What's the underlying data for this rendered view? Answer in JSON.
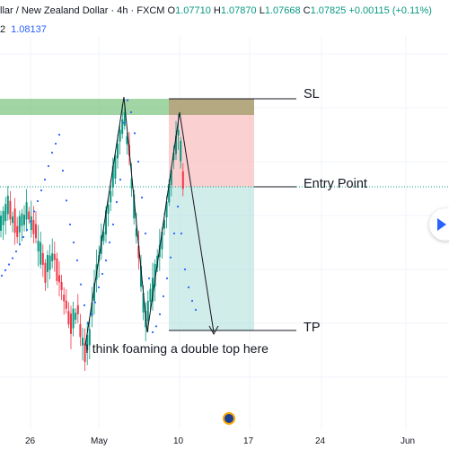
{
  "header": {
    "symbol": "llar / New Zealand Dollar",
    "sep1": "·",
    "interval": "4h",
    "sep2": "·",
    "exchange": "FXCM",
    "o_label": "O",
    "o_value": "1.07710",
    "h_label": "H",
    "h_value": "1.07870",
    "l_label": "L",
    "l_value": "1.07668",
    "c_label": "C",
    "c_value": "1.07825",
    "change": "+0.00115 (+0.11%)",
    "row2_prefix": "2",
    "row2_value": "1.08137"
  },
  "colors": {
    "up": "#089981",
    "down": "#f23645",
    "sar": "#2962ff",
    "zone_green": "#81c784",
    "stop_zone": "#f8a9a9",
    "target_zone": "#a9dfd8",
    "sl_band": "#a89a6b"
  },
  "chart_data": {
    "type": "candlestick",
    "x_tick_labels": [
      "26",
      "May",
      "10",
      "17",
      "24",
      "Jun"
    ],
    "series": [
      {
        "name": "price",
        "type": "candlestick"
      },
      {
        "name": "parabolic-sar",
        "type": "scatter"
      }
    ],
    "price_path": [
      [
        0,
        250
      ],
      [
        10,
        230
      ],
      [
        20,
        255
      ],
      [
        30,
        235
      ],
      [
        40,
        260
      ],
      [
        50,
        300
      ],
      [
        60,
        280
      ],
      [
        70,
        330
      ],
      [
        78,
        360
      ],
      [
        86,
        345
      ],
      [
        94,
        390
      ],
      [
        100,
        370
      ],
      [
        108,
        300
      ],
      [
        116,
        260
      ],
      [
        124,
        210
      ],
      [
        132,
        165
      ],
      [
        138,
        130
      ],
      [
        144,
        170
      ],
      [
        150,
        240
      ],
      [
        156,
        300
      ],
      [
        162,
        360
      ],
      [
        168,
        330
      ],
      [
        174,
        300
      ],
      [
        180,
        270
      ],
      [
        186,
        230
      ],
      [
        192,
        190
      ],
      [
        198,
        140
      ],
      [
        202,
        170
      ],
      [
        206,
        235
      ]
    ],
    "sar_path": [
      [
        0,
        310
      ],
      [
        8,
        298
      ],
      [
        16,
        284
      ],
      [
        24,
        268
      ],
      [
        32,
        252
      ],
      [
        40,
        230
      ],
      [
        50,
        200
      ],
      [
        58,
        170
      ],
      [
        66,
        150
      ],
      [
        72,
        210
      ],
      [
        78,
        250
      ],
      [
        86,
        290
      ],
      [
        92,
        330
      ],
      [
        98,
        360
      ],
      [
        104,
        345
      ],
      [
        110,
        320
      ],
      [
        118,
        290
      ],
      [
        126,
        250
      ],
      [
        134,
        200
      ],
      [
        140,
        105
      ],
      [
        146,
        125
      ],
      [
        152,
        160
      ],
      [
        158,
        220
      ],
      [
        164,
        280
      ],
      [
        170,
        370
      ],
      [
        176,
        360
      ],
      [
        182,
        330
      ],
      [
        188,
        300
      ],
      [
        194,
        260
      ],
      [
        198,
        230
      ],
      [
        202,
        260
      ],
      [
        206,
        300
      ],
      [
        212,
        330
      ],
      [
        218,
        345
      ]
    ],
    "annotations": {
      "sl": "SL",
      "entry": "Entry Point",
      "tp": "TP",
      "note": "I think foaming a double top here"
    },
    "grid": true
  }
}
